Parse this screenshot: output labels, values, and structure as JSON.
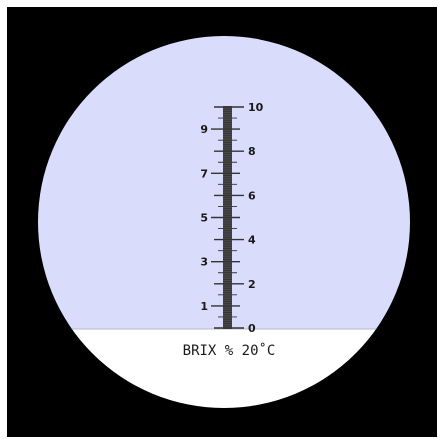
{
  "scale": {
    "min": 0,
    "max": 10,
    "reading": 0,
    "major_right": [
      "0",
      "2",
      "4",
      "6",
      "8",
      "10"
    ],
    "major_left": [
      "1",
      "3",
      "5",
      "7",
      "9"
    ]
  },
  "unit_label": "BRIX % 20˚C",
  "colors": {
    "background": "#000000",
    "upper_field": "#d9dcfb",
    "lower_field": "#ffffff",
    "scale_ink": "#333333"
  }
}
